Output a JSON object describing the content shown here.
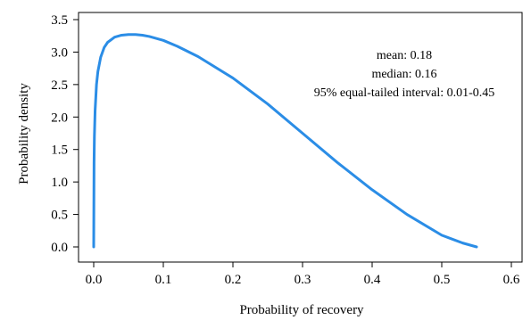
{
  "chart_data": {
    "type": "line",
    "title": "",
    "xlabel": "Probability of recovery",
    "ylabel": "Probability density",
    "xlim": [
      0.0,
      0.6
    ],
    "ylim": [
      0.0,
      3.5
    ],
    "x_ticks": [
      "0.0",
      "0.1",
      "0.2",
      "0.3",
      "0.4",
      "0.5",
      "0.6"
    ],
    "y_ticks": [
      "0.0",
      "0.5",
      "1.0",
      "1.5",
      "2.0",
      "2.5",
      "3.0",
      "3.5"
    ],
    "grid": false,
    "line_color": "#2b8de6",
    "series": [
      {
        "x": [
          0.0,
          0.0005,
          0.001,
          0.002,
          0.004,
          0.006,
          0.01,
          0.015,
          0.02,
          0.03,
          0.04,
          0.05,
          0.06,
          0.07,
          0.08,
          0.1,
          0.12,
          0.15,
          0.2,
          0.25,
          0.3,
          0.35,
          0.4,
          0.45,
          0.5,
          0.53,
          0.55
        ],
        "y": [
          0.0,
          1.3,
          1.7,
          2.1,
          2.5,
          2.7,
          2.92,
          3.07,
          3.15,
          3.23,
          3.26,
          3.27,
          3.27,
          3.26,
          3.24,
          3.18,
          3.09,
          2.93,
          2.6,
          2.2,
          1.75,
          1.3,
          0.88,
          0.5,
          0.18,
          0.06,
          0.0
        ]
      }
    ],
    "annotations": [
      "mean: 0.18",
      "median: 0.16",
      "95% equal-tailed interval: 0.01-0.45"
    ]
  }
}
